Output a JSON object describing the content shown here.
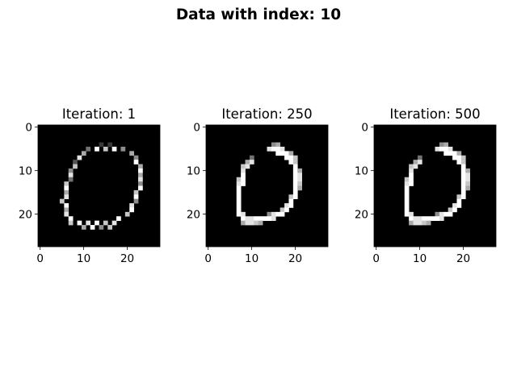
{
  "figure": {
    "suptitle": "Data with index: 10",
    "background": "#ffffff"
  },
  "chart_data": [
    {
      "type": "heatmap",
      "title": "Iteration: 1",
      "colormap": "gray",
      "image_size": [
        28,
        28
      ],
      "xlim": [
        -0.5,
        27.5
      ],
      "ylim": [
        27.5,
        -0.5
      ],
      "xticks": [
        0,
        10,
        20
      ],
      "yticks": [
        0,
        10,
        20
      ],
      "xticklabels": [
        "0",
        "10",
        "20"
      ],
      "yticklabels": [
        "0",
        "10",
        "20"
      ],
      "grid": false,
      "description": "noisy speckled ring of bright pixels shaped like the digit 0",
      "pixels": [
        "............................",
        "............................",
        "............................",
        "............................",
        "..............2.2...........",
        "...........4.9.7.9.5........",
        "..........6..........6......",
        ".........8............5.....",
        "........3.............9.....",
        "........7..............6....",
        ".......5...............9....",
        ".......8...............6....",
        ".......4...............8....",
        "......7................5....",
        "......9................9....",
        "......6...............7.....",
        "......8...............9.....",
        ".....7................5.....",
        "......9..............8......",
        "......6..............9......",
        "......8.............7.......",
        ".......9..........9.........",
        ".......7.9.8.9.7.8..........",
        "..........6.9.5.7...........",
        "............................",
        "............................",
        "............................",
        "............................"
      ]
    },
    {
      "type": "heatmap",
      "title": "Iteration: 250",
      "colormap": "gray",
      "image_size": [
        28,
        28
      ],
      "xlim": [
        -0.5,
        27.5
      ],
      "ylim": [
        27.5,
        -0.5
      ],
      "xticks": [
        0,
        10,
        20
      ],
      "yticks": [
        0,
        10,
        20
      ],
      "xticklabels": [
        "0",
        "10",
        "20"
      ],
      "yticklabels": [
        "0",
        "10",
        "20"
      ],
      "grid": false,
      "description": "smooth open-topped handwritten 0 stroke",
      "pixels": [
        "............................",
        "............................",
        "............................",
        "............................",
        "...............56...........",
        "..............8998..........",
        "................9996........",
        "..........4.......997.......",
        ".........68........97.......",
        "........78..........9.......",
        "........8...........96......",
        "........9...........98......",
        ".......79...........98......",
        ".......89...........97......",
        ".......9............96......",
        ".......9............9.......",
        ".......9...........79.......",
        ".......9...........9........",
        ".......9..........89........",
        ".......9.........79.........",
        ".......98.....5899..........",
        "........98899998............",
        "........68876...............",
        "............................",
        "............................",
        "............................",
        "............................",
        "............................"
      ]
    },
    {
      "type": "heatmap",
      "title": "Iteration: 500",
      "colormap": "gray",
      "image_size": [
        28,
        28
      ],
      "xlim": [
        -0.5,
        27.5
      ],
      "ylim": [
        27.5,
        -0.5
      ],
      "xticks": [
        0,
        10,
        20
      ],
      "yticks": [
        0,
        10,
        20
      ],
      "xticklabels": [
        "0",
        "10",
        "20"
      ],
      "yticklabels": [
        "0",
        "10",
        "20"
      ],
      "grid": false,
      "description": "smooth open-topped handwritten 0 stroke",
      "pixels": [
        "............................",
        "............................",
        "............................",
        "............................",
        "...............56...........",
        "..............8998..........",
        "................9996........",
        "..........4.......997.......",
        ".........68........97.......",
        "........78..........9.......",
        "........8...........96......",
        "........9...........98......",
        ".......79...........98......",
        ".......89...........97......",
        ".......9............96......",
        ".......9............9.......",
        ".......9...........79.......",
        ".......9...........9........",
        ".......9..........89........",
        ".......9.........79.........",
        ".......98.....5899..........",
        "........98899998............",
        "........68876...............",
        "............................",
        "............................",
        "............................",
        "............................",
        "............................"
      ]
    }
  ]
}
